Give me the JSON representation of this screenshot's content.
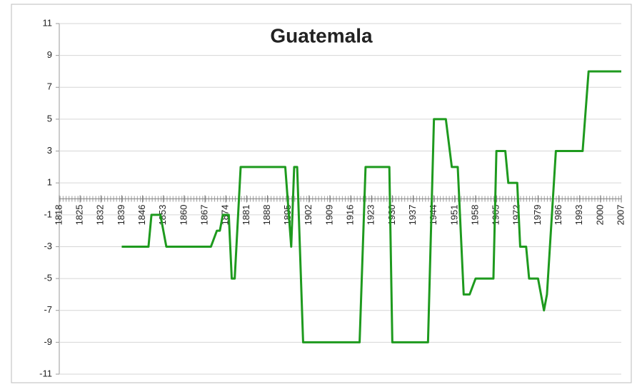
{
  "chart_data": {
    "type": "line",
    "title": "Guatemala",
    "x": [
      1839,
      1848,
      1849,
      1852,
      1854,
      1869,
      1871,
      1872,
      1873,
      1875,
      1876,
      1877,
      1879,
      1894,
      1896,
      1897,
      1898,
      1900,
      1919,
      1921,
      1929,
      1930,
      1942,
      1944,
      1948,
      1950,
      1952,
      1954,
      1956,
      1958,
      1964,
      1965,
      1968,
      1969,
      1972,
      1973,
      1975,
      1976,
      1979,
      1981,
      1982,
      1985,
      1994,
      1996,
      2007
    ],
    "values": [
      -3,
      -3,
      -1,
      -1,
      -3,
      -3,
      -2,
      -2,
      -1,
      -1,
      -5,
      -5,
      2,
      2,
      -3,
      2,
      2,
      -9,
      -9,
      2,
      2,
      -9,
      -9,
      5,
      5,
      2,
      2,
      -6,
      -6,
      -5,
      -5,
      3,
      3,
      1,
      1,
      -3,
      -3,
      -5,
      -5,
      -7,
      -6,
      3,
      3,
      8,
      8
    ],
    "color": "#1e9a1e",
    "xlim": [
      1818,
      2007
    ],
    "xticks": [
      1818,
      1825,
      1832,
      1839,
      1846,
      1853,
      1860,
      1867,
      1874,
      1881,
      1888,
      1895,
      1902,
      1909,
      1916,
      1923,
      1930,
      1937,
      1944,
      1951,
      1958,
      1965,
      1972,
      1979,
      1986,
      1993,
      2000,
      2007
    ],
    "ylim": [
      -11,
      11
    ],
    "yticks": [
      -11,
      -9,
      -7,
      -5,
      -3,
      -1,
      1,
      3,
      5,
      7,
      9,
      11
    ],
    "grid": true
  }
}
